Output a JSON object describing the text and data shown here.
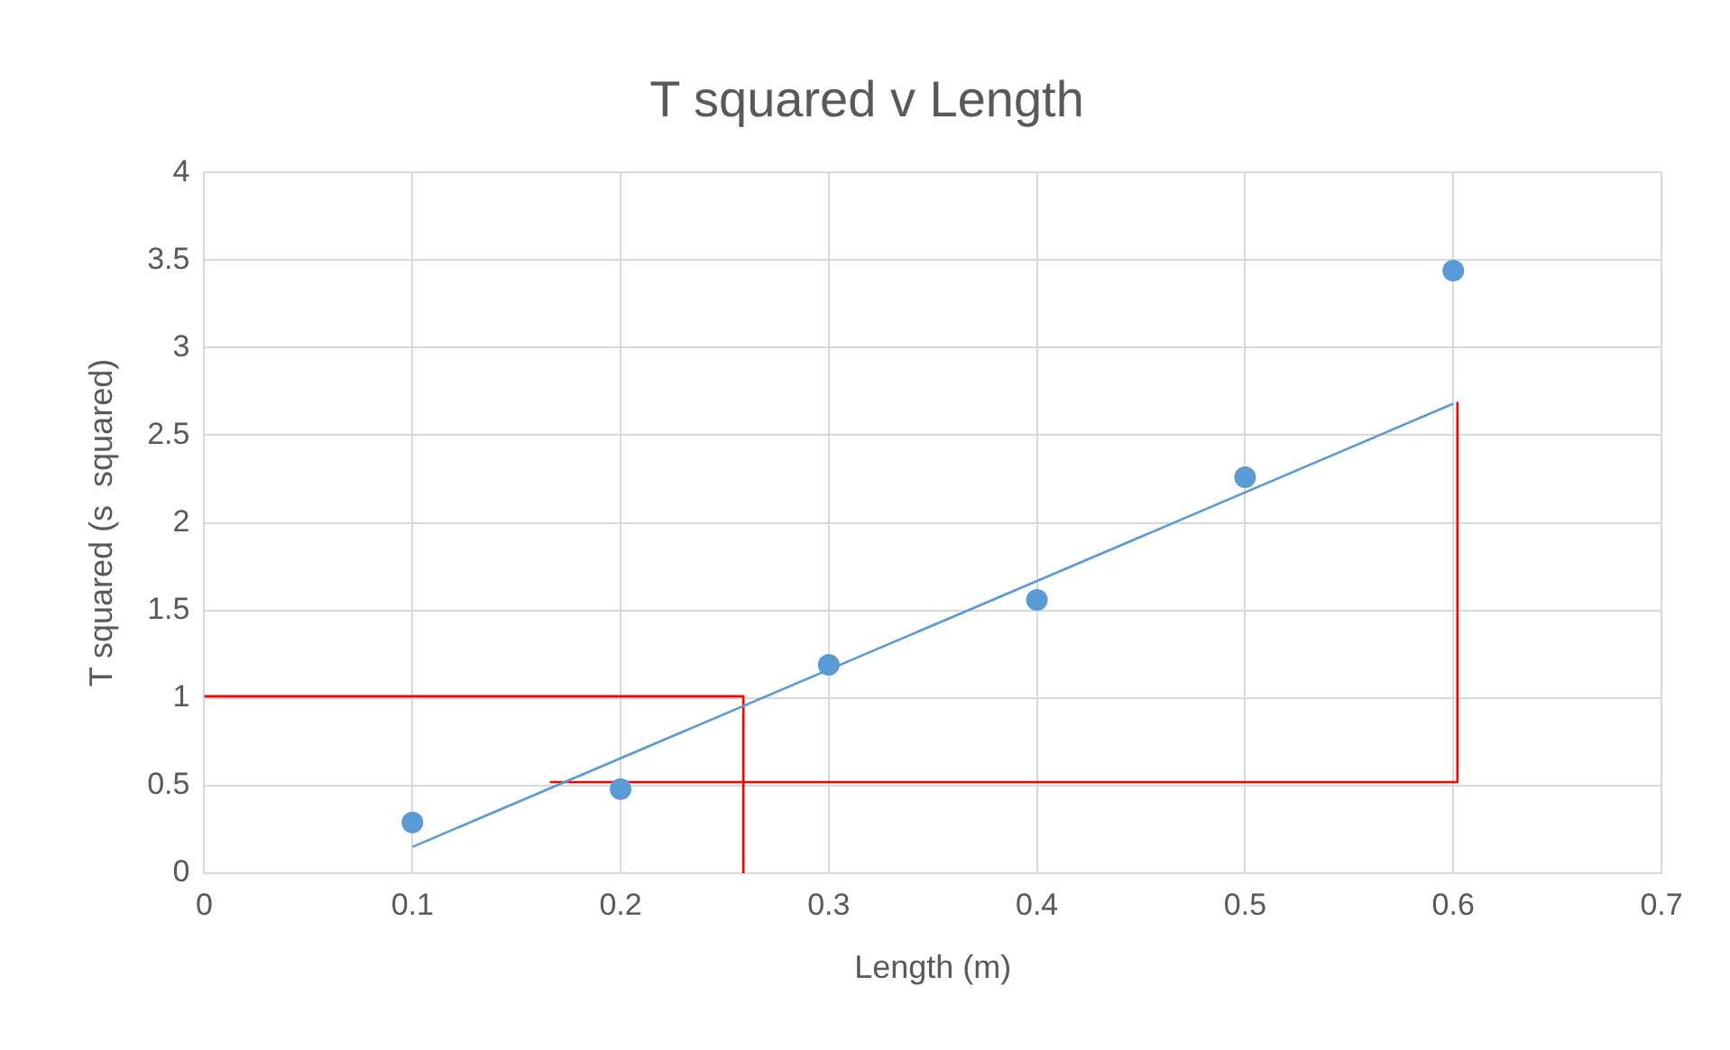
{
  "chart_data": {
    "type": "scatter",
    "title": "T squared v Length",
    "xlabel": "Length (m)",
    "ylabel": "T squared (s  squared)",
    "xlim": [
      0,
      0.7
    ],
    "xticks": [
      0,
      0.1,
      0.2,
      0.3,
      0.4,
      0.5,
      0.6,
      0.7
    ],
    "ylim": [
      0,
      4
    ],
    "yticks": [
      0,
      0.5,
      1,
      1.5,
      2,
      2.5,
      3,
      3.5,
      4
    ],
    "grid": true,
    "legend": false,
    "series": [
      {
        "type": "scatter",
        "color": "#5b9bd5",
        "marker": "circle",
        "x": [
          0.1,
          0.2,
          0.3,
          0.4,
          0.5,
          0.6
        ],
        "values": [
          0.29,
          0.48,
          1.19,
          1.56,
          2.26,
          3.44
        ]
      },
      {
        "type": "line",
        "color": "#5b9bd5",
        "marker": "none",
        "line_style": "solid",
        "x": [
          0.1,
          0.6
        ],
        "values": [
          0.15,
          2.68
        ]
      },
      {
        "type": "line",
        "color": "#ff0000",
        "marker": "none",
        "line_style": "solid",
        "x": [
          0,
          0.259,
          0.259
        ],
        "values": [
          1.01,
          1.01,
          0
        ]
      },
      {
        "type": "line",
        "color": "#ff0000",
        "marker": "none",
        "line_style": "solid",
        "x": [
          0.166,
          0.602,
          0.602
        ],
        "values": [
          0.52,
          0.52,
          2.69
        ]
      }
    ]
  }
}
